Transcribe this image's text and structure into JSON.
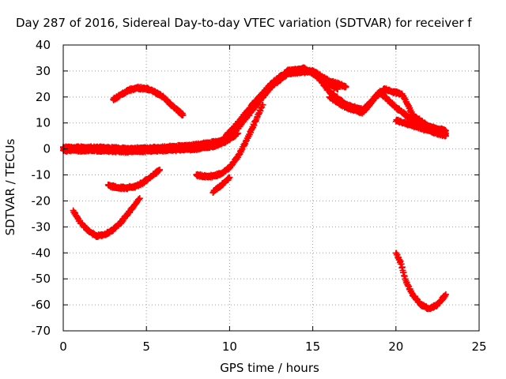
{
  "chart_data": {
    "type": "scatter",
    "title": "Day 287 of 2016, Sidereal Day-to-day VTEC variation (SDTVAR) for receiver f",
    "xlabel": "GPS time / hours",
    "ylabel": "SDTVAR / TECUs",
    "xlim": [
      0,
      25
    ],
    "ylim": [
      -70,
      40
    ],
    "xticks": [
      0,
      5,
      10,
      15,
      20,
      25
    ],
    "xtick_labels": [
      "0",
      "5",
      "10",
      "15",
      "20",
      "25"
    ],
    "yticks": [
      -70,
      -60,
      -50,
      -40,
      -30,
      -20,
      -10,
      0,
      10,
      20,
      30,
      40
    ],
    "ytick_labels": [
      "-70",
      "-60",
      "-50",
      "-40",
      "-30",
      "-20",
      "-10",
      "0",
      "10",
      "20",
      "30",
      "40"
    ],
    "grid": true,
    "marker_color": "#ff0000",
    "series": [
      {
        "x": [
          0,
          2,
          4,
          6,
          8,
          9,
          9.8,
          10.5
        ],
        "y": [
          0,
          0,
          -0.5,
          0,
          0.5,
          1,
          3,
          6
        ]
      },
      {
        "x": [
          0,
          2,
          4,
          6,
          8,
          9.5,
          10.5,
          11.5,
          12.5,
          13.5,
          15,
          16,
          17
        ],
        "y": [
          -0.5,
          -0.5,
          -1,
          -0.5,
          0,
          2,
          8,
          16,
          24,
          29,
          30,
          26,
          24
        ]
      },
      {
        "x": [
          0,
          2,
          4,
          6,
          8,
          9.5,
          10.5,
          11.5,
          12.5,
          13.5,
          14.5,
          15.5,
          16.5
        ],
        "y": [
          0.5,
          0.5,
          0,
          0.5,
          1.5,
          3,
          10,
          18,
          25,
          30,
          31,
          27,
          23
        ]
      },
      {
        "x": [
          3,
          3.5,
          4,
          4.5,
          5,
          5.5,
          6,
          6.5,
          7.2
        ],
        "y": [
          19,
          21,
          22.8,
          23.5,
          23.2,
          22,
          20,
          17,
          13
        ]
      },
      {
        "x": [
          2.7,
          3.2,
          3.8,
          4.3,
          4.8,
          5.3,
          5.8
        ],
        "y": [
          -14,
          -14.8,
          -15,
          -14.5,
          -13,
          -10.5,
          -8
        ]
      },
      {
        "x": [
          0.6,
          1,
          1.5,
          2,
          2.5,
          3,
          3.5,
          4,
          4.6
        ],
        "y": [
          -24,
          -28,
          -31.5,
          -33.5,
          -33,
          -31,
          -28,
          -24,
          -19
        ]
      },
      {
        "x": [
          8,
          8.5,
          9,
          9.5,
          10,
          10.5,
          11,
          11.5,
          12
        ],
        "y": [
          -10,
          -10.5,
          -10.5,
          -9.5,
          -7,
          -3,
          3,
          10,
          17
        ]
      },
      {
        "x": [
          9,
          9.5,
          10
        ],
        "y": [
          -16.5,
          -14,
          -11
        ]
      },
      {
        "x": [
          15,
          16,
          17,
          18,
          18.5,
          19,
          19.5,
          20,
          21,
          22,
          23
        ],
        "y": [
          30,
          22,
          17,
          15,
          18,
          22,
          19,
          16,
          11,
          8,
          6
        ]
      },
      {
        "x": [
          16,
          17,
          18,
          18.8,
          19.3,
          19.8,
          20.4,
          21,
          22,
          23
        ],
        "y": [
          20,
          16,
          14,
          20,
          23,
          22,
          21,
          13,
          8.5,
          7
        ]
      },
      {
        "x": [
          20,
          20.3,
          20.6,
          21,
          21.5,
          22,
          22.5,
          23
        ],
        "y": [
          -40,
          -44,
          -51,
          -56,
          -60,
          -61.5,
          -60,
          -56
        ]
      },
      {
        "x": [
          20,
          21,
          22,
          23
        ],
        "y": [
          11,
          9,
          7,
          5
        ]
      }
    ]
  }
}
